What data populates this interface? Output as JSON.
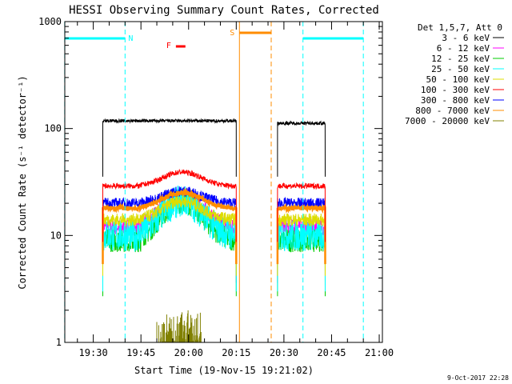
{
  "chart_data": {
    "type": "line",
    "title": "HESSI Observing Summary Count Rates, Corrected",
    "xlabel": "Start Time (19-Nov-15 19:21:02)",
    "ylabel": "Corrected Count Rate (s⁻¹ detector⁻¹)",
    "yscale": "log",
    "ylim": [
      1,
      1000
    ],
    "xlim": [
      "19:21:02",
      "21:01:00"
    ],
    "y_ticks": [
      "1",
      "10",
      "100",
      "1000"
    ],
    "x_ticks": [
      "19:30",
      "19:45",
      "20:00",
      "20:15",
      "20:30",
      "20:45",
      "21:00"
    ],
    "x_tick_minutes": [
      30,
      45,
      60,
      75,
      90,
      105,
      120
    ],
    "legend_title": "Det 1,5,7, Att 0",
    "legend_position": "right",
    "timestamp": "9-Oct-2017 22:28",
    "series": [
      {
        "name": "3 - 6 keV",
        "color": "#000000",
        "level": 118
      },
      {
        "name": "6 - 12 keV",
        "color": "#ff00ff",
        "level": 12
      },
      {
        "name": "12 - 25 keV",
        "color": "#00cc00",
        "level": 9
      },
      {
        "name": "25 - 50 keV",
        "color": "#00ffff",
        "level": 10
      },
      {
        "name": "50 - 100 keV",
        "color": "#dddd00",
        "level": 14
      },
      {
        "name": "100 - 300 keV",
        "color": "#ff0000",
        "level": 29
      },
      {
        "name": "300 - 800 keV",
        "color": "#0000ff",
        "level": 20
      },
      {
        "name": "800 - 7000 keV",
        "color": "#ff8c00",
        "level": 18
      },
      {
        "name": "7000 - 20000 keV",
        "color": "#808000",
        "level": 1.5
      }
    ],
    "annotations": [
      {
        "label": "N",
        "color": "#00ffff",
        "time_minutes": 40
      },
      {
        "label": "F",
        "color": "#ff0000",
        "time_minutes": 55
      },
      {
        "label": "S",
        "color": "#ff8c00",
        "time_minutes": 76
      }
    ],
    "night_periods": [
      [
        21,
        40
      ],
      [
        96,
        115
      ]
    ],
    "saa_period": [
      76,
      86
    ],
    "flare_period": [
      56,
      59
    ],
    "data_intervals": [
      [
        33,
        75
      ],
      [
        88,
        103
      ]
    ]
  }
}
